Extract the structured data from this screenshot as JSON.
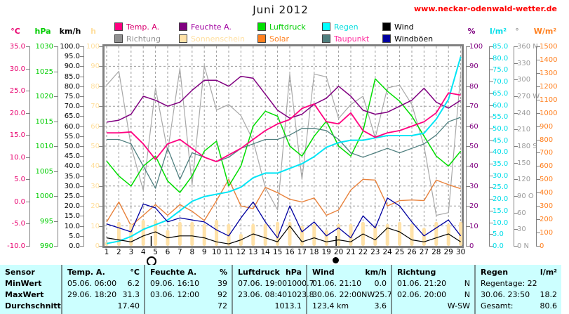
{
  "header": {
    "title": "Juni 2012",
    "site": "www.neckar-odenwald-wetter.de"
  },
  "colors": {
    "table_bg": "#CCFFFF",
    "link_red": "#FF0000",
    "frame_gray": "#808080",
    "grid_gray": "#9A9A9A"
  },
  "legend": {
    "rows": [
      [
        {
          "label": "Temp. A.",
          "swatch": "#FF0080",
          "label_color": "#D8006E"
        },
        {
          "label": "Feuchte A.",
          "swatch": "#800080",
          "label_color": "#A000A0"
        },
        {
          "label": "Luftdruck",
          "swatch": "#00E000",
          "label_color": "#00CC00"
        },
        {
          "label": "Regen",
          "swatch": "#00FFFF",
          "label_color": "#00DDDD"
        },
        {
          "label": "Wind",
          "swatch": "#000000",
          "label_color": "#000000"
        }
      ],
      [
        {
          "label": "Richtung",
          "swatch": "#909090",
          "label_color": "#909090"
        },
        {
          "label": "Sonnenschein",
          "swatch": "#FFE2A8",
          "label_color": "#FFDFA0"
        },
        {
          "label": "Solar",
          "swatch": "#FF8020",
          "label_color": "#FF8020"
        },
        {
          "label": "Taupunkt",
          "swatch": "#4F7F7F",
          "label_color": "#FF30A0"
        },
        {
          "label": "Windböen",
          "swatch": "#0000A0",
          "label_color": "#000000"
        }
      ]
    ]
  },
  "axes": {
    "left": [
      {
        "unit": "°C",
        "color": "#E8006E",
        "labels": [
          "35.0",
          "30.0",
          "25.0",
          "20.0",
          "15.0",
          "10.0",
          "5.0",
          "0.0",
          "-5.0",
          "-10.0"
        ]
      },
      {
        "unit": "hPa",
        "color": "#00CC00",
        "labels": [
          "1030",
          "1025",
          "1020",
          "1015",
          "1010",
          "1005",
          "1000",
          "995",
          "990"
        ]
      },
      {
        "unit": "km/h",
        "color": "#000000",
        "labels": [
          "100.0",
          "95.0",
          "90.0",
          "85.0",
          "80.0",
          "75.0",
          "70.0",
          "65.0",
          "60.0",
          "55.0",
          "50.0",
          "45.0",
          "40.0",
          "35.0",
          "30.0",
          "25.0",
          "20.0",
          "15.0",
          "10.0",
          "5.0",
          "0.0"
        ]
      },
      {
        "unit": "h",
        "color": "#FFDF9E",
        "labels": [
          "100",
          "90",
          "80",
          "70",
          "60",
          "50",
          "40",
          "30",
          "20",
          "10",
          "0"
        ]
      }
    ],
    "right": [
      {
        "unit": "%",
        "color": "#800080",
        "labels": [
          "100",
          "90",
          "80",
          "70",
          "60",
          "50",
          "40",
          "30",
          "20",
          "10",
          "0"
        ]
      },
      {
        "unit": "l/m²",
        "color": "#00DDE8",
        "labels": [
          "85.0",
          "80.0",
          "75.0",
          "70.0",
          "65.0",
          "60.0",
          "55.0",
          "50.0",
          "45.0",
          "40.0",
          "35.0",
          "30.0",
          "25.0",
          "20.0",
          "15.0",
          "10.0",
          "5.0",
          "0.0"
        ]
      },
      {
        "unit": "°",
        "color": "#9A9A9A",
        "labels": [
          "360 N",
          "330",
          "300",
          "270 W",
          "240",
          "210",
          "180 S",
          "150",
          "120",
          "90 O",
          "60",
          "30",
          "0 N"
        ]
      },
      {
        "unit": "W/m²",
        "color": "#FF8020",
        "labels": [
          "1500",
          "1400",
          "1300",
          "1200",
          "1100",
          "1000",
          "900",
          "800",
          "700",
          "600",
          "500",
          "400",
          "300",
          "200",
          "100",
          "0"
        ]
      }
    ]
  },
  "chart_data": {
    "type": "line",
    "title": "Juni 2012",
    "days": [
      1,
      2,
      3,
      4,
      5,
      6,
      7,
      8,
      9,
      10,
      11,
      12,
      13,
      14,
      15,
      16,
      17,
      18,
      19,
      20,
      21,
      22,
      23,
      24,
      25,
      26,
      27,
      28,
      29,
      30
    ],
    "grid": "dashed",
    "moon_markers": [
      {
        "day": 4.65,
        "phase": "full-moon",
        "symbol": "open-circle"
      },
      {
        "day": 19.8,
        "phase": "new-moon",
        "symbol": "filled-circle"
      }
    ],
    "series": [
      {
        "name": "Richtung",
        "unit": "°",
        "color": "#A8A8A8",
        "range": [
          0,
          360
        ],
        "style": "line",
        "width": 1.2,
        "values": [
          290,
          315,
          180,
          100,
          285,
          170,
          320,
          110,
          325,
          245,
          255,
          235,
          190,
          105,
          65,
          310,
          120,
          310,
          305,
          230,
          255,
          270,
          195,
          285,
          290,
          255,
          180,
          55,
          60,
          310
        ]
      },
      {
        "name": "Solar",
        "unit": "W/m²",
        "color": "#E8823C",
        "range": [
          0,
          1500
        ],
        "style": "line",
        "width": 1.4,
        "values": [
          180,
          330,
          150,
          230,
          310,
          230,
          310,
          260,
          190,
          340,
          500,
          300,
          280,
          440,
          400,
          350,
          330,
          360,
          230,
          270,
          420,
          500,
          495,
          300,
          340,
          345,
          340,
          495,
          460,
          430
        ]
      },
      {
        "name": "Sonnenschein",
        "unit": "h",
        "color": "#FFE2A8",
        "range": [
          0,
          100
        ],
        "style": "bar",
        "width": 5,
        "values": [
          2,
          12,
          11,
          13,
          13,
          8,
          12,
          12,
          11,
          13,
          11,
          6,
          11,
          11,
          12,
          12,
          10,
          11,
          8,
          11,
          11,
          12,
          10,
          11,
          12,
          11,
          9,
          12,
          11,
          12
        ]
      },
      {
        "name": "Luftdruck",
        "unit": "hPa",
        "color": "#00DD00",
        "range": [
          990,
          1030
        ],
        "style": "line",
        "width": 1.5,
        "values": [
          1007,
          1004,
          1002,
          1006,
          1008,
          1003,
          1000.7,
          1004,
          1009,
          1011,
          1002,
          1006,
          1014,
          1017,
          1016,
          1010,
          1008,
          1012,
          1015,
          1010,
          1008,
          1013,
          1023.5,
          1021,
          1019,
          1016,
          1012,
          1008,
          1006,
          1009
        ]
      },
      {
        "name": "Feuchte A.",
        "unit": "%",
        "color": "#800080",
        "range": [
          0,
          100
        ],
        "style": "line",
        "width": 1.5,
        "values": [
          62,
          63,
          66,
          75,
          73,
          70,
          72,
          78,
          83,
          83,
          80,
          85,
          84,
          76,
          68,
          64,
          66,
          71,
          74,
          80,
          75,
          68,
          66,
          67,
          70,
          73,
          79,
          72,
          69,
          73
        ]
      },
      {
        "name": "Taupunkt",
        "unit": "°C",
        "color": "#4F7F7F",
        "range": [
          -10,
          35
        ],
        "style": "line",
        "width": 1.3,
        "values": [
          14,
          14,
          13,
          8,
          3,
          12,
          5,
          11,
          10,
          9,
          10,
          12,
          13,
          14,
          14,
          15,
          16.5,
          16.5,
          16,
          14,
          11,
          10,
          11,
          12,
          11,
          12,
          13,
          15,
          18,
          19
        ]
      },
      {
        "name": "Regen",
        "unit": "l/m²",
        "color": "#00E5F5",
        "range": [
          0,
          85
        ],
        "style": "line",
        "width": 2,
        "values": [
          1,
          2,
          4,
          7,
          9,
          11,
          15,
          19,
          21,
          22,
          23,
          25,
          29,
          31,
          31,
          33,
          35,
          38,
          42,
          44,
          45,
          45,
          46,
          47,
          47,
          47,
          48,
          54,
          62.4,
          80.6
        ]
      },
      {
        "name": "Windböen",
        "unit": "km/h",
        "color": "#0000A0",
        "range": [
          0,
          100
        ],
        "style": "line",
        "width": 1.3,
        "values": [
          11,
          9,
          7,
          21,
          19,
          12,
          14,
          13,
          12,
          8,
          5,
          14,
          22,
          12,
          4,
          20,
          7,
          12,
          5,
          9,
          4,
          15,
          9,
          24,
          20,
          12,
          5,
          9,
          13,
          5
        ]
      },
      {
        "name": "Wind",
        "unit": "km/h",
        "color": "#000000",
        "range": [
          0,
          100
        ],
        "style": "line",
        "width": 1.2,
        "values": [
          4,
          3,
          2,
          5,
          7,
          4,
          5,
          5,
          4,
          2,
          1,
          3,
          6,
          4,
          2,
          10,
          2,
          4,
          2,
          3,
          2,
          6,
          3,
          9,
          7,
          3,
          2,
          4,
          6,
          2
        ]
      },
      {
        "name": "Temp. A.",
        "unit": "°C",
        "color": "#FF0080",
        "range": [
          -10,
          35
        ],
        "style": "line",
        "width": 1.8,
        "values": [
          15.5,
          15.5,
          15.7,
          13,
          9.5,
          13,
          14,
          12,
          10,
          9,
          10.5,
          12,
          14,
          16,
          17.5,
          18.5,
          21,
          22,
          18,
          17.5,
          20,
          16,
          14.5,
          15.5,
          16,
          17,
          18,
          20,
          24.5,
          24
        ]
      }
    ]
  },
  "table": {
    "row_labels": [
      "Sensor",
      "MinWert",
      "MaxWert",
      "Durchschnitt"
    ],
    "columns": [
      {
        "title": "Temp. A.",
        "unit": "°C",
        "min": [
          "05.06.  06:00",
          "6.2"
        ],
        "max": [
          "29.06.  18:20",
          "31.3"
        ],
        "avg": [
          "",
          "17.40"
        ]
      },
      {
        "title": "Feuchte A.",
        "unit": "%",
        "min": [
          "09.06.  16:10",
          "39"
        ],
        "max": [
          "03.06.  12:00",
          "92"
        ],
        "avg": [
          "",
          "72"
        ]
      },
      {
        "title": "Luftdruck",
        "unit": "hPa",
        "min": [
          "07.06.  19:00",
          "1000.7"
        ],
        "max": [
          "23.06.  08:40",
          "1023.8"
        ],
        "avg": [
          "",
          "1013.1"
        ]
      },
      {
        "title": "Wind",
        "unit": "km/h",
        "min": [
          "01.06.  21:10",
          "0.0"
        ],
        "max": [
          "30.06.  22:00NW",
          "25.7"
        ],
        "avg": [
          "123,4 km",
          "3.6"
        ]
      },
      {
        "title": "Richtung",
        "unit": "",
        "min": [
          "01.06.  21:20",
          "N"
        ],
        "max": [
          "02.06.  20:00",
          "N"
        ],
        "avg": [
          "",
          "W-SW"
        ]
      },
      {
        "title": "Regen",
        "unit": "l/m²",
        "min": [
          "Regentage: 22",
          ""
        ],
        "max": [
          "30.06.  23:50",
          "18.2"
        ],
        "avg": [
          "Gesamt:",
          "80.6"
        ]
      }
    ]
  }
}
